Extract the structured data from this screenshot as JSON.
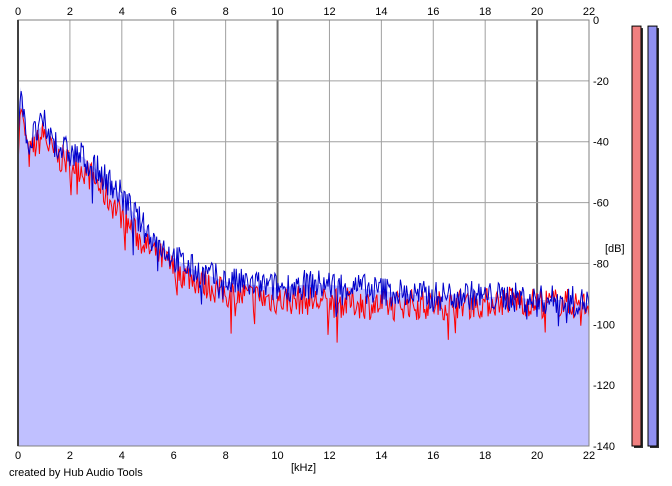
{
  "credit": "created by Hub Audio Tools",
  "colors": {
    "left_channel": "#ff0000",
    "right_channel": "#0000cc",
    "fill": "#c0c0ff",
    "grid": "#a0a0a0",
    "left_meter": "#f08080",
    "right_meter": "#9090f0"
  },
  "chart_data": {
    "type": "line",
    "xlabel": "[kHz]",
    "ylabel": "[dB]",
    "xlim": [
      0,
      22
    ],
    "ylim": [
      -140,
      0
    ],
    "x_ticks": [
      "0",
      "2",
      "4",
      "6",
      "8",
      "10",
      "12",
      "14",
      "16",
      "18",
      "20",
      "22"
    ],
    "y_ticks": [
      "0",
      "-20",
      "-40",
      "-60",
      "-80",
      "-100",
      "-120",
      "-140"
    ],
    "grid": true,
    "x": [
      0,
      0.1,
      0.2,
      0.4,
      0.6,
      0.8,
      1.0,
      1.2,
      1.5,
      2.0,
      2.5,
      3.0,
      3.5,
      4.0,
      4.5,
      5.0,
      5.5,
      6.0,
      6.5,
      7.0,
      8.0,
      9.0,
      10.0,
      11.0,
      12.0,
      13.0,
      14.0,
      15.0,
      16.0,
      17.0,
      18.0,
      19.0,
      20.0,
      21.0,
      22.0
    ],
    "series": [
      {
        "values": [
          -47,
          -28,
          -33,
          -45,
          -42,
          -40,
          -37,
          -42,
          -45,
          -47,
          -49,
          -53,
          -59,
          -64,
          -70,
          -75,
          -78,
          -82,
          -84,
          -86,
          -90,
          -91,
          -92,
          -92,
          -93,
          -93,
          -94,
          -93,
          -94,
          -93,
          -93,
          -92,
          -93,
          -93,
          -94
        ]
      },
      {
        "values": [
          -40,
          -22,
          -28,
          -42,
          -38,
          -36,
          -34,
          -38,
          -41,
          -44,
          -45,
          -49,
          -53,
          -58,
          -64,
          -70,
          -74,
          -78,
          -81,
          -83,
          -86,
          -87,
          -88,
          -87,
          -87,
          -88,
          -89,
          -90,
          -91,
          -90,
          -91,
          -91,
          -92,
          -92,
          -93
        ]
      }
    ],
    "meters": [
      {
        "value_db": -2
      },
      {
        "value_db": -2
      }
    ]
  }
}
